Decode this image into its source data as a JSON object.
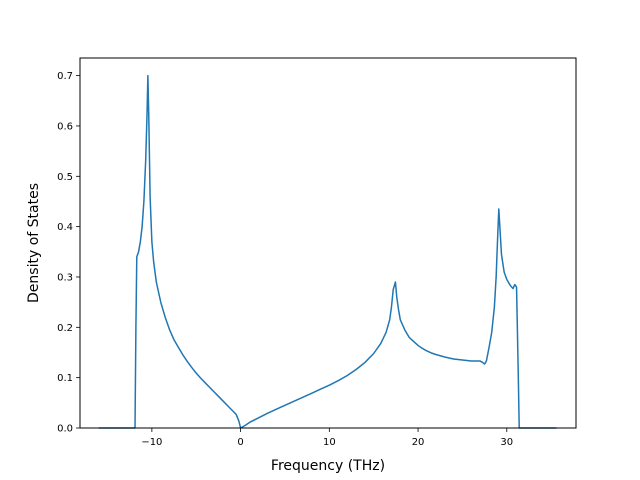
{
  "chart_data": {
    "type": "line",
    "title": "",
    "xlabel": "Frequency (THz)",
    "ylabel": "Density of States",
    "xlim": [
      -18.1,
      37.8
    ],
    "ylim": [
      0.0,
      0.735
    ],
    "xticks": [
      -10,
      0,
      10,
      20,
      30
    ],
    "yticks": [
      0.0,
      0.1,
      0.2,
      0.3,
      0.4,
      0.5,
      0.6,
      0.7
    ],
    "grid": false,
    "legend": "none",
    "series": [
      {
        "color": "#1f77b4",
        "points": [
          [
            -16.0,
            0.0
          ],
          [
            -11.9,
            0.0
          ],
          [
            -11.8,
            0.2
          ],
          [
            -11.7,
            0.34
          ],
          [
            -11.5,
            0.35
          ],
          [
            -11.3,
            0.37
          ],
          [
            -11.1,
            0.4
          ],
          [
            -10.9,
            0.45
          ],
          [
            -10.7,
            0.53
          ],
          [
            -10.55,
            0.62
          ],
          [
            -10.45,
            0.7
          ],
          [
            -10.35,
            0.62
          ],
          [
            -10.2,
            0.46
          ],
          [
            -10.0,
            0.37
          ],
          [
            -9.8,
            0.33
          ],
          [
            -9.5,
            0.29
          ],
          [
            -9.0,
            0.25
          ],
          [
            -8.5,
            0.22
          ],
          [
            -8.0,
            0.195
          ],
          [
            -7.5,
            0.175
          ],
          [
            -7.0,
            0.16
          ],
          [
            -6.5,
            0.145
          ],
          [
            -6.0,
            0.132
          ],
          [
            -5.5,
            0.12
          ],
          [
            -5.0,
            0.109
          ],
          [
            -4.5,
            0.099
          ],
          [
            -4.0,
            0.09
          ],
          [
            -3.5,
            0.081
          ],
          [
            -3.0,
            0.072
          ],
          [
            -2.5,
            0.063
          ],
          [
            -2.0,
            0.054
          ],
          [
            -1.5,
            0.045
          ],
          [
            -1.0,
            0.036
          ],
          [
            -0.5,
            0.027
          ],
          [
            -0.2,
            0.014
          ],
          [
            0.0,
            0.0
          ],
          [
            0.5,
            0.005
          ],
          [
            1.0,
            0.011
          ],
          [
            2.0,
            0.02
          ],
          [
            3.0,
            0.029
          ],
          [
            4.0,
            0.037
          ],
          [
            5.0,
            0.045
          ],
          [
            6.0,
            0.053
          ],
          [
            7.0,
            0.061
          ],
          [
            8.0,
            0.069
          ],
          [
            9.0,
            0.077
          ],
          [
            10.0,
            0.085
          ],
          [
            11.0,
            0.094
          ],
          [
            12.0,
            0.104
          ],
          [
            13.0,
            0.116
          ],
          [
            14.0,
            0.13
          ],
          [
            15.0,
            0.148
          ],
          [
            15.8,
            0.168
          ],
          [
            16.4,
            0.19
          ],
          [
            16.8,
            0.215
          ],
          [
            17.0,
            0.24
          ],
          [
            17.2,
            0.275
          ],
          [
            17.45,
            0.29
          ],
          [
            17.6,
            0.26
          ],
          [
            17.8,
            0.235
          ],
          [
            18.0,
            0.215
          ],
          [
            18.5,
            0.195
          ],
          [
            19.0,
            0.18
          ],
          [
            19.5,
            0.172
          ],
          [
            20.0,
            0.164
          ],
          [
            20.5,
            0.158
          ],
          [
            21.0,
            0.153
          ],
          [
            21.5,
            0.149
          ],
          [
            22.0,
            0.146
          ],
          [
            23.0,
            0.141
          ],
          [
            24.0,
            0.137
          ],
          [
            25.0,
            0.135
          ],
          [
            26.0,
            0.133
          ],
          [
            27.0,
            0.133
          ],
          [
            27.3,
            0.13
          ],
          [
            27.5,
            0.127
          ],
          [
            27.7,
            0.133
          ],
          [
            28.0,
            0.16
          ],
          [
            28.3,
            0.19
          ],
          [
            28.6,
            0.24
          ],
          [
            28.8,
            0.3
          ],
          [
            28.95,
            0.37
          ],
          [
            29.1,
            0.435
          ],
          [
            29.25,
            0.39
          ],
          [
            29.4,
            0.345
          ],
          [
            29.7,
            0.31
          ],
          [
            30.0,
            0.295
          ],
          [
            30.4,
            0.283
          ],
          [
            30.7,
            0.277
          ],
          [
            30.9,
            0.285
          ],
          [
            31.1,
            0.28
          ],
          [
            31.3,
            0.1
          ],
          [
            31.4,
            0.0
          ],
          [
            35.6,
            0.0
          ]
        ]
      }
    ]
  }
}
